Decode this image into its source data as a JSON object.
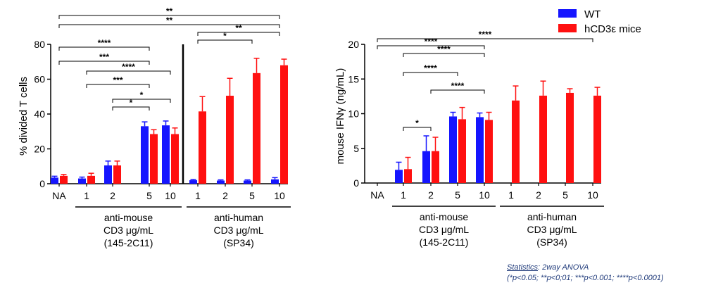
{
  "colors": {
    "wt": "#1515ff",
    "hcd3": "#ff1010",
    "text": "#000000",
    "stats_text": "#1f3a7a"
  },
  "legend": {
    "items": [
      {
        "label": "WT",
        "color": "#1515ff"
      },
      {
        "label": "hCD3ε mice",
        "color": "#ff1010"
      }
    ]
  },
  "statistics": {
    "label": "Statistics",
    "method": ": 2way ANOVA",
    "note": "(*p<0.05; **p<0;01; ***p<0.001; ****p<0.0001)"
  },
  "chart_data": [
    {
      "type": "bar",
      "ylabel": "% divided T cells",
      "ylim": [
        0,
        80
      ],
      "yticks": [
        0,
        20,
        40,
        60,
        80
      ],
      "categories": [
        "NA",
        "1",
        "2",
        "5",
        "10",
        "1",
        "2",
        "5",
        "10"
      ],
      "groups": [
        {
          "label_lines": [
            "anti-mouse",
            "CD3 μg/mL",
            "(145-2C11)"
          ],
          "categories": [
            1,
            4
          ]
        },
        {
          "label_lines": [
            "anti-human",
            "CD3 μg/mL",
            "(SP34)"
          ],
          "categories": [
            5,
            8
          ]
        }
      ],
      "series": [
        {
          "name": "WT",
          "color": "#1515ff",
          "values": [
            3.5,
            3.0,
            10.5,
            33.0,
            33.5,
            2.0,
            1.8,
            1.8,
            2.5
          ],
          "errors": [
            0.8,
            0.8,
            2.5,
            2.5,
            2.5,
            0.4,
            0.4,
            0.4,
            1.0
          ]
        },
        {
          "name": "hCD3ε mice",
          "color": "#ff1010",
          "values": [
            4.5,
            4.5,
            10.5,
            28.5,
            28.5,
            41.5,
            50.5,
            63.5,
            68.0
          ],
          "errors": [
            0.8,
            1.5,
            2.5,
            2.5,
            3.5,
            8.5,
            10.0,
            8.5,
            3.5
          ]
        }
      ],
      "significance": [
        {
          "from": 0,
          "to": 8,
          "label": "**"
        },
        {
          "from": 0,
          "to": 8,
          "label": "**"
        },
        {
          "from": 5,
          "to": 8,
          "label": "**"
        },
        {
          "from": 5,
          "to": 7,
          "label": "*"
        },
        {
          "from": 0,
          "to": 3,
          "label": "****"
        },
        {
          "from": 0,
          "to": 3,
          "label": "***"
        },
        {
          "from": 1,
          "to": 4,
          "label": "****"
        },
        {
          "from": 1,
          "to": 3,
          "label": "***"
        },
        {
          "from": 2,
          "to": 4,
          "label": "*"
        },
        {
          "from": 2,
          "to": 3,
          "label": "*"
        }
      ]
    },
    {
      "type": "bar",
      "ylabel": "mouse IFNγ (ng/mL)",
      "ylim": [
        0,
        20
      ],
      "yticks": [
        0,
        5,
        10,
        15,
        20
      ],
      "categories": [
        "NA",
        "1",
        "2",
        "5",
        "10",
        "1",
        "2",
        "5",
        "10"
      ],
      "groups": [
        {
          "label_lines": [
            "anti-mouse",
            "CD3 μg/mL",
            "(145-2C11)"
          ],
          "categories": [
            1,
            4
          ]
        },
        {
          "label_lines": [
            "anti-human",
            "CD3 μg/mL",
            "(SP34)"
          ],
          "categories": [
            5,
            8
          ]
        }
      ],
      "series": [
        {
          "name": "WT",
          "color": "#1515ff",
          "values": [
            0,
            1.9,
            4.6,
            9.6,
            9.5,
            0,
            0,
            0,
            0
          ],
          "errors": [
            0,
            1.1,
            2.2,
            0.6,
            0.6,
            0,
            0,
            0,
            0
          ]
        },
        {
          "name": "hCD3ε mice",
          "color": "#ff1010",
          "values": [
            0,
            2.0,
            4.6,
            9.2,
            9.1,
            11.9,
            12.6,
            13.0,
            12.6
          ],
          "errors": [
            0,
            1.7,
            2.0,
            1.7,
            1.1,
            2.1,
            2.1,
            0.6,
            1.2
          ]
        }
      ],
      "significance": [
        {
          "from": 0,
          "to": 8,
          "label": "****"
        },
        {
          "from": 0,
          "to": 4,
          "label": "****"
        },
        {
          "from": 1,
          "to": 4,
          "label": "****"
        },
        {
          "from": 1,
          "to": 3,
          "label": "****"
        },
        {
          "from": 2,
          "to": 4,
          "label": "****"
        },
        {
          "from": 1,
          "to": 2,
          "label": "*"
        }
      ]
    }
  ]
}
